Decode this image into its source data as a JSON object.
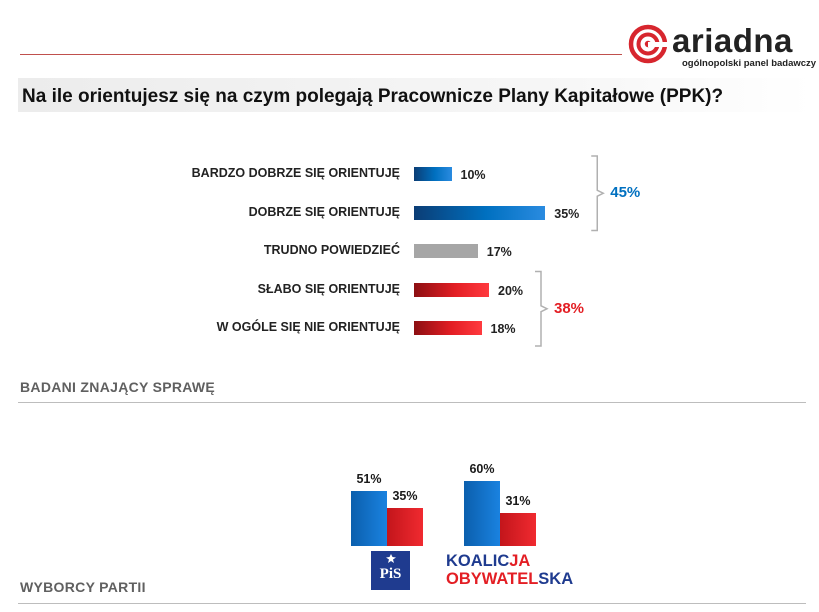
{
  "brand": {
    "name": "ariadna",
    "tagline": "ogólnopolski panel badawczy",
    "logo_color": "#d7262e"
  },
  "title": "Na ile orientujesz się na czym polegają Pracownicze Plany Kapitałowe (PPK)?",
  "colors": {
    "positive": "#0070c0",
    "neutral": "#a6a6a6",
    "negative": "#e31e24"
  },
  "chart_data": [
    {
      "type": "bar",
      "orientation": "horizontal",
      "title": "",
      "categories": [
        "BARDZO DOBRZE SIĘ ORIENTUJĘ",
        "DOBRZE SIĘ ORIENTUJĘ",
        "TRUDNO POWIEDZIEĆ",
        "SŁABO SIĘ ORIENTUJĘ",
        "W OGÓLE SIĘ NIE ORIENTUJĘ"
      ],
      "values": [
        10,
        35,
        17,
        20,
        18
      ],
      "value_labels": [
        "10%",
        "35%",
        "17%",
        "20%",
        "18%"
      ],
      "bar_colors": [
        "#0070c0",
        "#0070c0",
        "#a6a6a6",
        "#e31e24",
        "#e31e24"
      ],
      "groups": [
        {
          "label": "45%",
          "value": 45,
          "members": [
            0,
            1
          ],
          "color": "#0070c0"
        },
        {
          "label": "38%",
          "value": 38,
          "members": [
            3,
            4
          ],
          "color": "#e31e24"
        }
      ],
      "xlim": [
        0,
        100
      ]
    },
    {
      "type": "bar",
      "orientation": "vertical",
      "title": "",
      "categories": [
        "PiS",
        "KOALICJA OBYWATELSKA"
      ],
      "series": [
        {
          "values": [
            51,
            60
          ],
          "value_labels": [
            "51%",
            "60%"
          ],
          "color": "#0070c0"
        },
        {
          "values": [
            35,
            31
          ],
          "value_labels": [
            "35%",
            "31%"
          ],
          "color": "#e31e24"
        }
      ],
      "ylim": [
        0,
        100
      ]
    }
  ],
  "sections": {
    "informed": "BADANI ZNAJĄCY SPRAWĘ",
    "voters": "WYBORCY PARTII"
  },
  "party_logos": {
    "pis": "PiS",
    "ko_line1_a": "KOALIC",
    "ko_line1_b": "JA",
    "ko_line2_a": "OBYWATEL",
    "ko_line2_b": "SKA"
  }
}
